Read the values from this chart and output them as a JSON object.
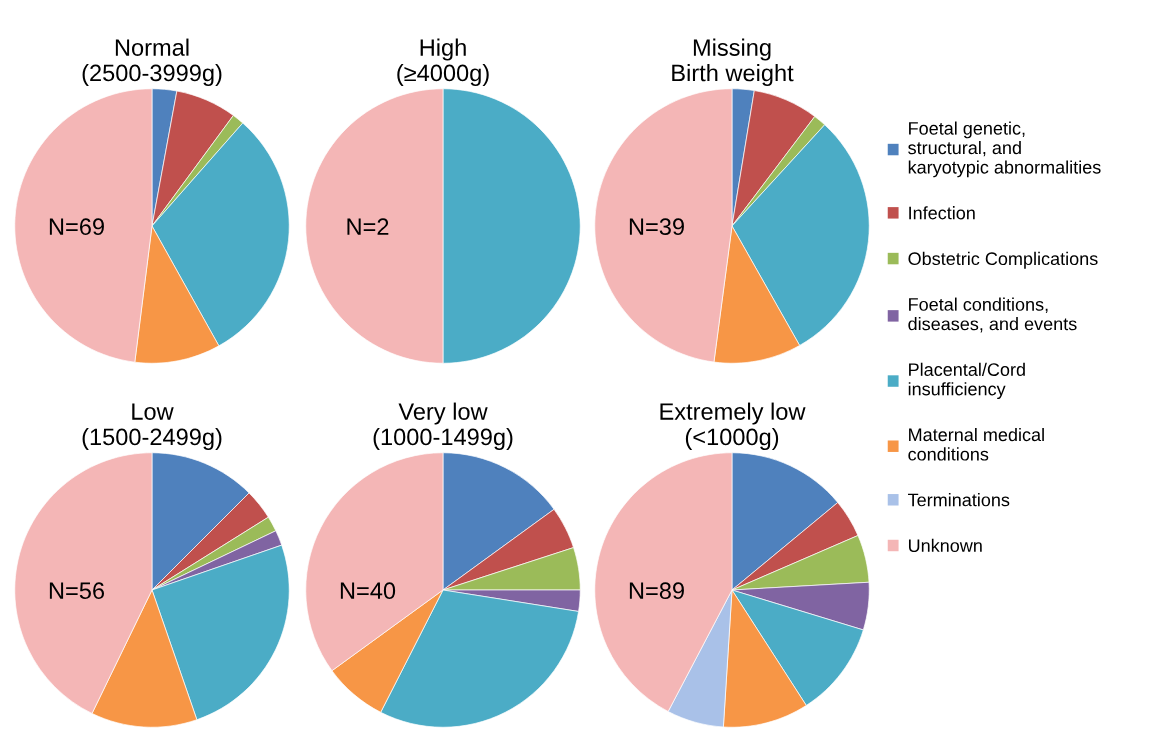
{
  "chart_data": [
    {
      "type": "pie",
      "title": "Normal\n(2500-3999g)",
      "annotations": [
        "N=69"
      ],
      "legend": "right",
      "categories": [
        "Foetal genetic,\nstructural, and\nkaryotypic abnormalities",
        "Infection",
        "Obstetric Complications",
        "Foetal conditions,\ndiseases, and events",
        "Placental/Cord\ninsufficiency",
        "Maternal medical\nconditions",
        "Terminations",
        "Unknown"
      ],
      "values": [
        2.9,
        7.2,
        1.4,
        0,
        30.4,
        10.1,
        0,
        48.0
      ],
      "colors": [
        "#4f81bd",
        "#c0504d",
        "#9bbb59",
        "#8064a2",
        "#4bacc6",
        "#f79646",
        "#a9c1e8",
        "#f4b6b6"
      ]
    },
    {
      "type": "pie",
      "title": "High\n(≥4000g)",
      "annotations": [
        "N=2"
      ],
      "categories": [
        null,
        null,
        null,
        null,
        null,
        null,
        null,
        null
      ],
      "values": [
        0,
        0,
        0,
        0,
        50,
        0,
        0,
        50
      ],
      "colors": [
        "#4f81bd",
        "#c0504d",
        "#9bbb59",
        "#8064a2",
        "#4bacc6",
        "#f79646",
        "#a9c1e8",
        "#f4b6b6"
      ]
    },
    {
      "type": "pie",
      "title": "Missing\nBirth weight",
      "annotations": [
        "N=39"
      ],
      "categories": [
        null,
        null,
        null,
        null,
        null,
        null,
        null,
        null
      ],
      "values": [
        2.6,
        7.7,
        1.5,
        0,
        30.0,
        10.3,
        0,
        47.9
      ],
      "colors": [
        "#4f81bd",
        "#c0504d",
        "#9bbb59",
        "#8064a2",
        "#4bacc6",
        "#f79646",
        "#a9c1e8",
        "#f4b6b6"
      ]
    },
    {
      "type": "pie",
      "title": "Low\n(1500-2499g)",
      "annotations": [
        "N=56"
      ],
      "categories": [
        null,
        null,
        null,
        null,
        null,
        null,
        null,
        null
      ],
      "values": [
        12.5,
        3.6,
        1.8,
        1.8,
        25.0,
        12.5,
        0,
        42.8
      ],
      "colors": [
        "#4f81bd",
        "#c0504d",
        "#9bbb59",
        "#8064a2",
        "#4bacc6",
        "#f79646",
        "#a9c1e8",
        "#f4b6b6"
      ]
    },
    {
      "type": "pie",
      "title": "Very low\n(1000-1499g)",
      "annotations": [
        "N=40"
      ],
      "categories": [
        null,
        null,
        null,
        null,
        null,
        null,
        null,
        null
      ],
      "values": [
        15.0,
        5.0,
        5.0,
        2.5,
        30.0,
        7.5,
        0,
        35.0
      ],
      "colors": [
        "#4f81bd",
        "#c0504d",
        "#9bbb59",
        "#8064a2",
        "#4bacc6",
        "#f79646",
        "#a9c1e8",
        "#f4b6b6"
      ]
    },
    {
      "type": "pie",
      "title": "Extremely low\n(<1000g)",
      "annotations": [
        "N=89"
      ],
      "categories": [
        null,
        null,
        null,
        null,
        null,
        null,
        null,
        null
      ],
      "values": [
        14.0,
        4.5,
        5.6,
        5.6,
        11.2,
        10.1,
        6.7,
        42.3
      ],
      "colors": [
        "#4f81bd",
        "#c0504d",
        "#9bbb59",
        "#8064a2",
        "#4bacc6",
        "#f79646",
        "#a9c1e8",
        "#f4b6b6"
      ]
    }
  ]
}
